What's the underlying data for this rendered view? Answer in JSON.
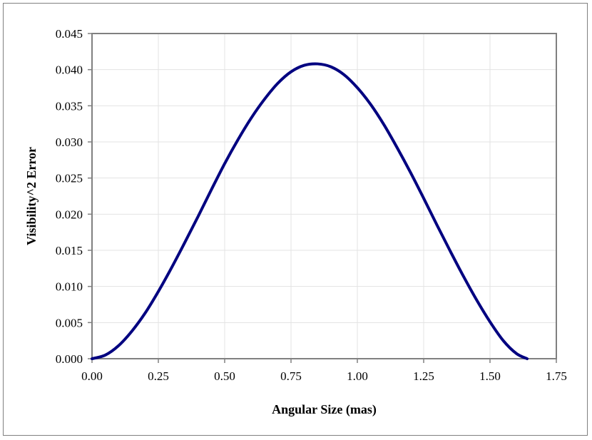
{
  "chart_data": {
    "type": "line",
    "xlabel": "Angular Size (mas)",
    "ylabel": "Visibility^2 Error",
    "xlim": [
      0,
      1.75
    ],
    "ylim": [
      0,
      0.045
    ],
    "x_ticks": [
      "0.00",
      "0.25",
      "0.50",
      "0.75",
      "1.00",
      "1.25",
      "1.50",
      "1.75"
    ],
    "y_ticks": [
      "0.000",
      "0.005",
      "0.010",
      "0.015",
      "0.020",
      "0.025",
      "0.030",
      "0.035",
      "0.040",
      "0.045"
    ],
    "grid": true,
    "line_color": "#000080",
    "series": [
      {
        "x": [
          0.0,
          0.05,
          0.1,
          0.15,
          0.2,
          0.25,
          0.3,
          0.35,
          0.4,
          0.45,
          0.5,
          0.55,
          0.6,
          0.65,
          0.7,
          0.75,
          0.8,
          0.85,
          0.9,
          0.95,
          1.0,
          1.05,
          1.1,
          1.15,
          1.2,
          1.25,
          1.3,
          1.35,
          1.4,
          1.45,
          1.5,
          1.55,
          1.6,
          1.64
        ],
        "y": [
          0.0,
          0.0005,
          0.0018,
          0.0038,
          0.0063,
          0.0093,
          0.0126,
          0.0161,
          0.0197,
          0.0234,
          0.027,
          0.0303,
          0.0333,
          0.0359,
          0.0381,
          0.0397,
          0.0406,
          0.0408,
          0.0404,
          0.0393,
          0.0375,
          0.0352,
          0.0324,
          0.0292,
          0.0258,
          0.0222,
          0.0185,
          0.0149,
          0.0114,
          0.0081,
          0.0051,
          0.0025,
          0.0007,
          0.0
        ]
      }
    ]
  }
}
